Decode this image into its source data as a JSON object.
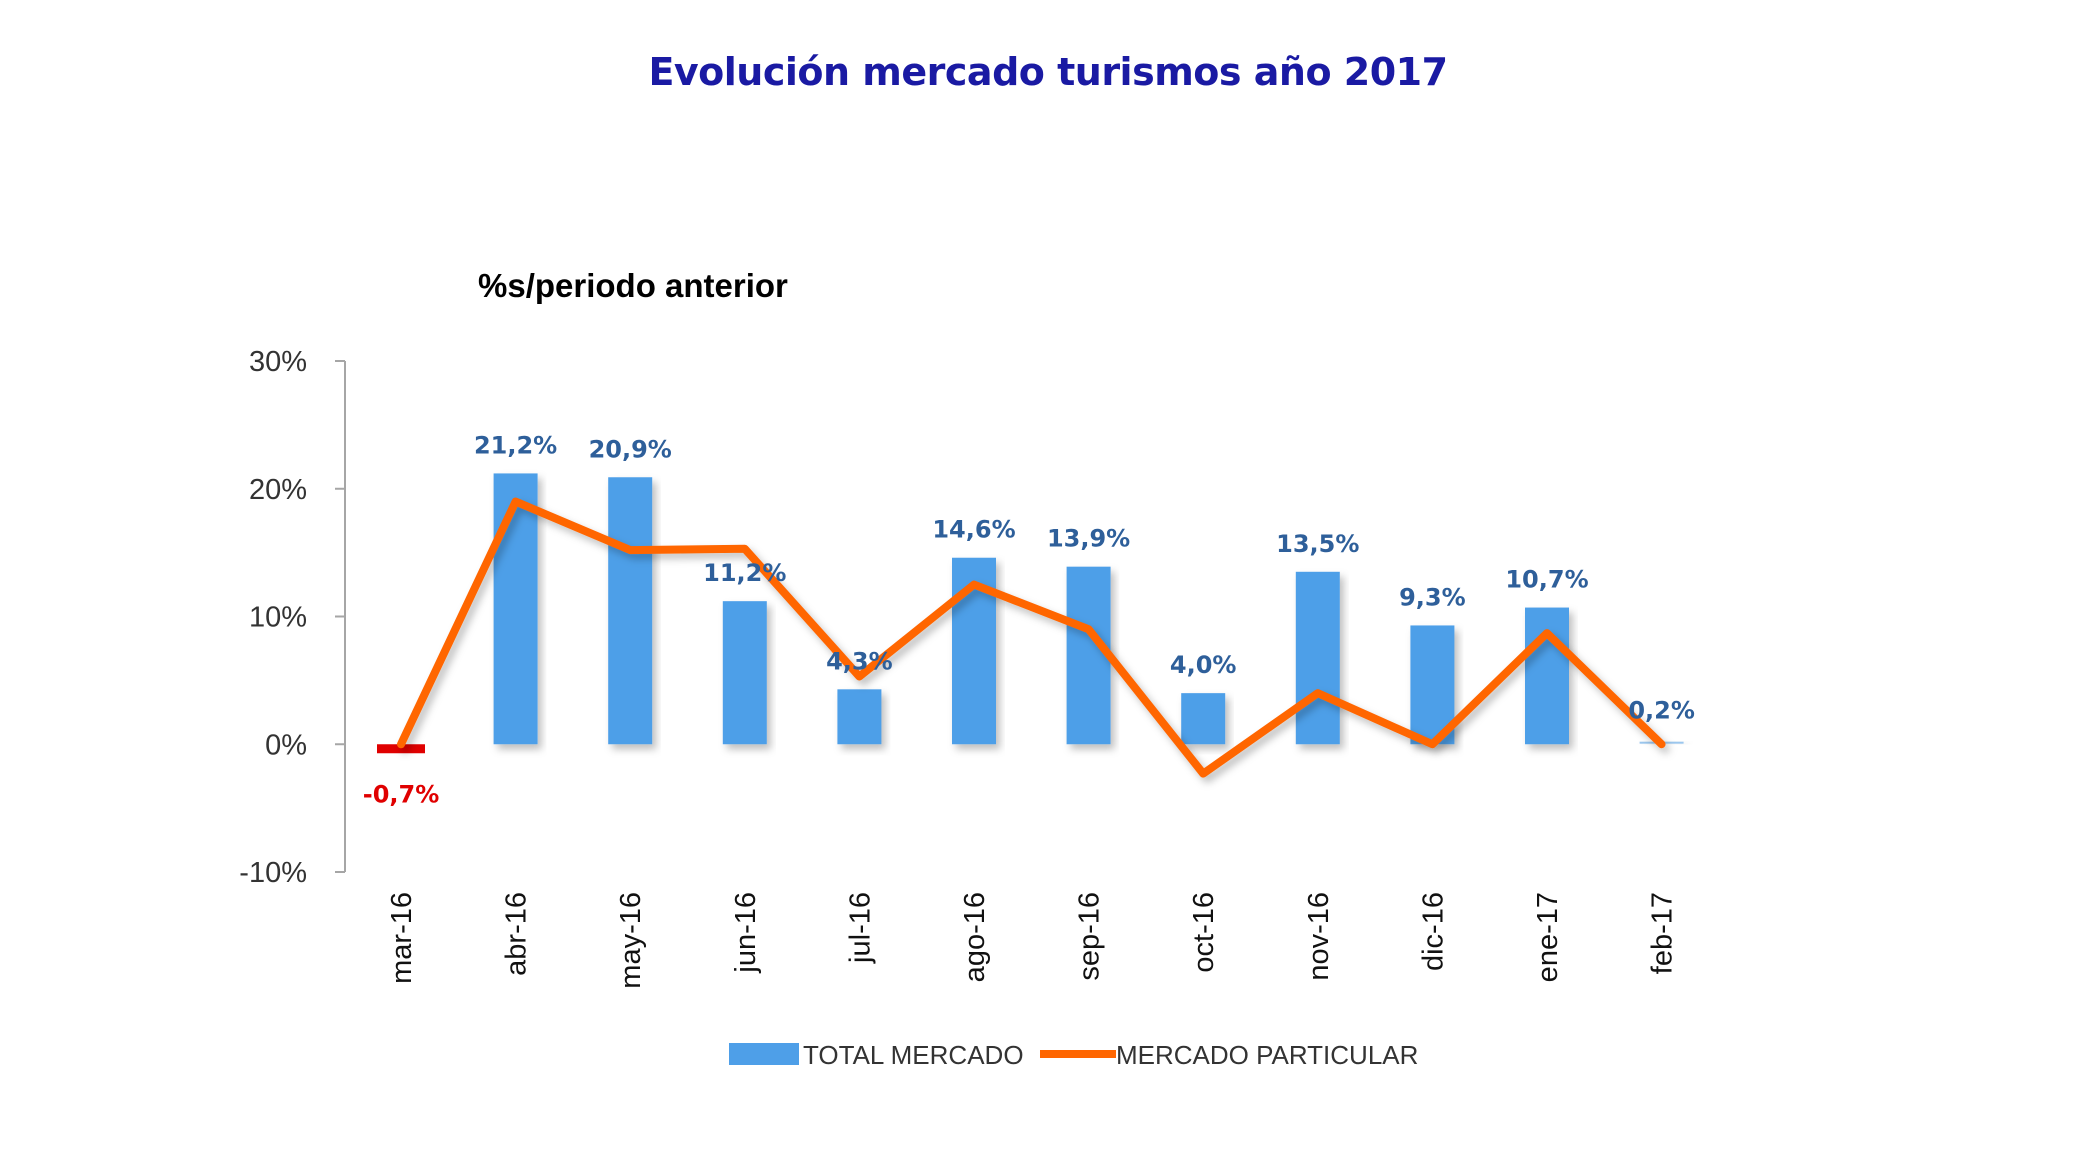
{
  "title": "Evolución mercado turismos año 2017",
  "chart_data": {
    "type": "bar",
    "subtitle": "%s/periodo anterior",
    "categories": [
      "mar-16",
      "abr-16",
      "may-16",
      "jun-16",
      "jul-16",
      "ago-16",
      "sep-16",
      "oct-16",
      "nov-16",
      "dic-16",
      "ene-17",
      "feb-17"
    ],
    "series": [
      {
        "name": "TOTAL MERCADO",
        "kind": "bar",
        "color": "#4e9fe8",
        "values": [
          -0.7,
          21.2,
          20.9,
          11.2,
          4.3,
          14.6,
          13.9,
          4.0,
          13.5,
          9.3,
          10.7,
          0.2
        ],
        "labels": [
          "-0,7%",
          "21,2%",
          "20,9%",
          "11,2%",
          "4,3%",
          "14,6%",
          "13,9%",
          "4,0%",
          "13,5%",
          "9,3%",
          "10,7%",
          "0,2%"
        ]
      },
      {
        "name": "MERCADO PARTICULAR",
        "kind": "line",
        "color": "#ff6600",
        "values": [
          0.0,
          19.0,
          15.2,
          15.3,
          5.3,
          12.5,
          9.0,
          -2.3,
          4.0,
          0.0,
          8.7,
          0.0
        ]
      }
    ],
    "yticks": [
      30,
      20,
      10,
      0,
      -10
    ],
    "ytick_labels": [
      "30%",
      "20%",
      "10%",
      "0%",
      "-10%"
    ],
    "ylim": [
      -10,
      30
    ],
    "label_color": "#2e5f9a",
    "negative_color": "#e00000",
    "legend": "bottom-center",
    "grid": false
  }
}
